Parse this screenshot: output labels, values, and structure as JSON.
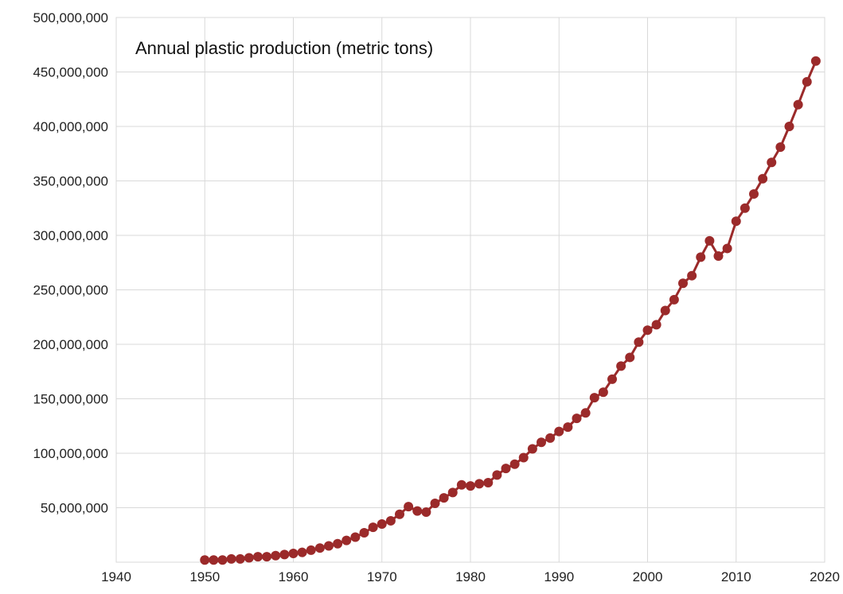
{
  "chart_data": {
    "type": "line",
    "title": "Annual plastic production (metric tons)",
    "xlabel": "",
    "ylabel": "",
    "xlim": [
      1940,
      2020
    ],
    "ylim": [
      0,
      500000000
    ],
    "x_ticks": [
      "1940",
      "1950",
      "1960",
      "1970",
      "1980",
      "1990",
      "2000",
      "2010",
      "2020"
    ],
    "y_ticks": [
      "50,000,000",
      "100,000,000",
      "150,000,000",
      "200,000,000",
      "250,000,000",
      "300,000,000",
      "350,000,000",
      "400,000,000",
      "450,000,000",
      "500,000,000"
    ],
    "grid": true,
    "legend": "none",
    "series_color": "#9b2a2a",
    "series": [
      {
        "x": [
          1950,
          1951,
          1952,
          1953,
          1954,
          1955,
          1956,
          1957,
          1958,
          1959,
          1960,
          1961,
          1962,
          1963,
          1964,
          1965,
          1966,
          1967,
          1968,
          1969,
          1970,
          1971,
          1972,
          1973,
          1974,
          1975,
          1976,
          1977,
          1978,
          1979,
          1980,
          1981,
          1982,
          1983,
          1984,
          1985,
          1986,
          1987,
          1988,
          1989,
          1990,
          1991,
          1992,
          1993,
          1994,
          1995,
          1996,
          1997,
          1998,
          1999,
          2000,
          2001,
          2002,
          2003,
          2004,
          2005,
          2006,
          2007,
          2008,
          2009,
          2010,
          2011,
          2012,
          2013,
          2014,
          2015,
          2016,
          2017,
          2018,
          2019
        ],
        "values": [
          2000000,
          2000000,
          2000000,
          3000000,
          3000000,
          4000000,
          5000000,
          5000000,
          6000000,
          7000000,
          8000000,
          9000000,
          11000000,
          13000000,
          15000000,
          17000000,
          20000000,
          23000000,
          27000000,
          32000000,
          35000000,
          38000000,
          44000000,
          51000000,
          47000000,
          46000000,
          54000000,
          59000000,
          64000000,
          71000000,
          70000000,
          72000000,
          73000000,
          80000000,
          86000000,
          90000000,
          96000000,
          104000000,
          110000000,
          114000000,
          120000000,
          124000000,
          132000000,
          137000000,
          151000000,
          156000000,
          168000000,
          180000000,
          188000000,
          202000000,
          213000000,
          218000000,
          231000000,
          241000000,
          256000000,
          263000000,
          280000000,
          295000000,
          281000000,
          288000000,
          313000000,
          325000000,
          338000000,
          352000000,
          367000000,
          381000000,
          400000000,
          420000000,
          441000000,
          460000000
        ]
      }
    ]
  }
}
